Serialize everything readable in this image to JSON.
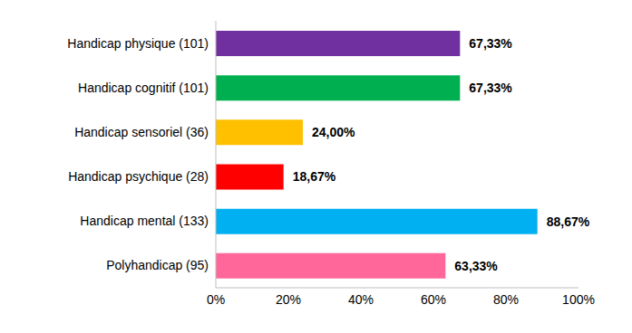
{
  "chart_data": {
    "type": "bar",
    "orientation": "horizontal",
    "categories": [
      "Handicap physique (101)",
      "Handicap cognitif (101)",
      "Handicap sensoriel (36)",
      "Handicap psychique (28)",
      "Handicap mental (133)",
      "Polyhandicap (95)"
    ],
    "values": [
      67.33,
      67.33,
      24,
      18.67,
      88.67,
      63.33
    ],
    "value_labels": [
      "67,33%",
      "67,33%",
      "24,00%",
      "18,67%",
      "88,67%",
      "63,33%"
    ],
    "colors": [
      "#7030a0",
      "#00b050",
      "#ffc000",
      "#ff0000",
      "#00b0f0",
      "#ff6699"
    ],
    "xlim": [
      0,
      100
    ],
    "xticks": [
      {
        "value": 0,
        "label": "0%"
      },
      {
        "value": 20,
        "label": "20%"
      },
      {
        "value": 40,
        "label": "40%"
      },
      {
        "value": 60,
        "label": "60%"
      },
      {
        "value": 80,
        "label": "80%"
      },
      {
        "value": 100,
        "label": "100%"
      }
    ],
    "grid": false,
    "data_labels": true
  }
}
